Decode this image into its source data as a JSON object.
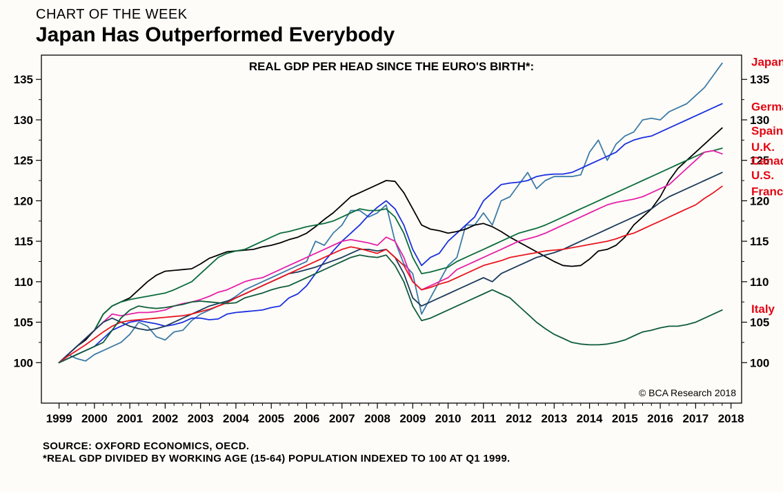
{
  "header": {
    "supertitle": "CHART OF THE WEEK",
    "title": "Japan Has Outperformed Everybody"
  },
  "chart": {
    "type": "line",
    "plot_title": "REAL GDP PER HEAD SINCE THE EURO'S BIRTH*:",
    "plot_title_fontsize": 17,
    "copyright": "© BCA Research 2018",
    "background_color": "#fdfcf8",
    "plot_bg_color": "#fdfcf8",
    "border_color": "#000000",
    "border_width": 1.3,
    "tick_length_major": 8,
    "tick_length_minor": 4,
    "x": {
      "min": 1998.5,
      "max": 2018.3,
      "ticks_major": [
        1999,
        2000,
        2001,
        2002,
        2003,
        2004,
        2005,
        2006,
        2007,
        2008,
        2009,
        2010,
        2011,
        2012,
        2013,
        2014,
        2015,
        2016,
        2017,
        2018
      ],
      "tick_label_fontsize": 17
    },
    "y": {
      "min": 95,
      "max": 138,
      "ticks_major": [
        100,
        105,
        110,
        115,
        120,
        125,
        130,
        135
      ],
      "tick_label_fontsize": 17,
      "right_axis": true
    },
    "label_color": "#e30613",
    "series_x_step": 0.25,
    "series": [
      {
        "name": "Japan",
        "label": "Japan",
        "color": "#3b7aa8",
        "stroke_width": 1.8,
        "label_y": 137,
        "y": [
          100,
          101,
          100.5,
          100.2,
          101,
          101.5,
          102,
          102.5,
          103.5,
          105,
          104.5,
          103.2,
          102.8,
          103.8,
          104,
          105.2,
          106,
          106.5,
          107,
          107.5,
          108.2,
          109,
          109.5,
          110,
          110.5,
          111,
          111.5,
          112,
          112.5,
          115,
          114.5,
          116,
          117,
          118.8,
          118.8,
          118,
          118.5,
          119.5,
          115,
          112.2,
          111,
          106,
          108,
          110,
          112,
          113,
          117,
          117,
          118.5,
          117,
          120,
          120.5,
          122,
          123.5,
          121.5,
          122.5,
          123,
          123,
          123,
          123.2,
          126,
          127.5,
          125,
          127,
          128,
          128.5,
          130,
          130.2,
          130,
          131,
          131.5,
          132,
          133,
          134,
          135.5,
          137
        ]
      },
      {
        "name": "Germany",
        "label": "Germany",
        "color": "#1a2fe0",
        "stroke_width": 1.8,
        "label_y": 131.5,
        "y": [
          100,
          100.5,
          101,
          101.5,
          102,
          103,
          104,
          104.5,
          105,
          105.2,
          105,
          104.8,
          104.5,
          104.7,
          105,
          105.5,
          105.5,
          105.3,
          105.4,
          106,
          106.2,
          106.3,
          106.4,
          106.5,
          106.8,
          107,
          108,
          108.5,
          109.5,
          111,
          112.5,
          113.8,
          115,
          116,
          117,
          118.2,
          119.2,
          120,
          119,
          117,
          114,
          112,
          113,
          113.5,
          115,
          116,
          117,
          118,
          120,
          121,
          122,
          122.2,
          122.3,
          122.5,
          123,
          123.2,
          123.3,
          123.3,
          123.5,
          124,
          124.5,
          125,
          125.5,
          126,
          127,
          127.5,
          127.8,
          128,
          128.5,
          129,
          129.5,
          130,
          130.5,
          131,
          131.5,
          132
        ]
      },
      {
        "name": "Spain",
        "label": "Spain",
        "color": "#000000",
        "stroke_width": 1.8,
        "label_y": 128.5,
        "y": [
          100,
          101,
          102,
          102.8,
          104,
          106,
          107,
          107.5,
          108,
          109,
          110,
          110.8,
          111.3,
          111.4,
          111.5,
          111.6,
          112.2,
          112.9,
          113.3,
          113.7,
          113.8,
          113.9,
          114,
          114.3,
          114.5,
          114.8,
          115.2,
          115.5,
          116,
          116.8,
          117.7,
          118.5,
          119.5,
          120.5,
          121,
          121.5,
          122,
          122.5,
          122.4,
          121,
          119,
          117,
          116.5,
          116.3,
          116,
          116.2,
          116.5,
          117,
          117.2,
          116.8,
          116.2,
          115.5,
          114.9,
          114.3,
          113.7,
          113.1,
          112.5,
          112,
          111.9,
          112,
          112.8,
          113.8,
          114,
          114.5,
          115.5,
          117,
          118,
          119,
          120.5,
          122.5,
          124,
          125,
          126,
          127,
          128,
          129
        ]
      },
      {
        "name": "UK",
        "label": "U.K.",
        "color": "#0a6b3b",
        "stroke_width": 1.8,
        "label_y": 126.5,
        "y": [
          100,
          101,
          102,
          103,
          104,
          106,
          107,
          107.5,
          107.8,
          108,
          108.2,
          108.4,
          108.6,
          109,
          109.5,
          110,
          111,
          112,
          113,
          113.5,
          113.8,
          114,
          114.5,
          115,
          115.5,
          116,
          116.2,
          116.5,
          116.8,
          117,
          117.2,
          117.5,
          118,
          118.5,
          119,
          118.8,
          118.8,
          119,
          118,
          116,
          113,
          111,
          111.2,
          111.5,
          111.8,
          112.5,
          113,
          113.5,
          114,
          114.5,
          115,
          115.5,
          116,
          116.3,
          116.6,
          117,
          117.5,
          118,
          118.5,
          119,
          119.5,
          120,
          120.5,
          121,
          121.5,
          122,
          122.5,
          123,
          123.5,
          124,
          124.5,
          125,
          125.5,
          126,
          126.2,
          126.5
        ]
      },
      {
        "name": "Canada",
        "label": "Canada",
        "color": "#e61fa8",
        "stroke_width": 1.8,
        "label_y": 124.8,
        "y": [
          100,
          101,
          102,
          103,
          104,
          105,
          106,
          105.8,
          106,
          106.2,
          106.2,
          106.3,
          106.5,
          107,
          107.3,
          107.5,
          107.8,
          108.2,
          108.7,
          109,
          109.5,
          110,
          110.3,
          110.5,
          111,
          111.5,
          112,
          112.5,
          113,
          113.5,
          114,
          114.5,
          115,
          115.2,
          115,
          114.8,
          114.5,
          115.5,
          115,
          113,
          110,
          109,
          109.5,
          110,
          110.5,
          111.5,
          112,
          112.5,
          113,
          113.5,
          114,
          114.5,
          115,
          115.3,
          115.6,
          116,
          116.5,
          117,
          117.5,
          118,
          118.5,
          119,
          119.5,
          119.8,
          120,
          120.2,
          120.5,
          121,
          121.5,
          122,
          123,
          124,
          125,
          126,
          126.2,
          125.8
        ]
      },
      {
        "name": "US",
        "label": "U.S.",
        "color": "#1b3a5c",
        "stroke_width": 1.8,
        "label_y": 123,
        "y": [
          100,
          101,
          102,
          103,
          104,
          105,
          105.5,
          105,
          104.5,
          104.2,
          104,
          104.2,
          104.5,
          105,
          105.5,
          106,
          106.5,
          107,
          107.3,
          107.6,
          108,
          108.5,
          109,
          109.5,
          110,
          110.5,
          111,
          111.2,
          111.5,
          111.8,
          112.2,
          112.6,
          113,
          113.5,
          114,
          114,
          113.8,
          114,
          113,
          111,
          108,
          107,
          107.5,
          108,
          108.5,
          109,
          109.5,
          110,
          110.5,
          110,
          111,
          111.5,
          112,
          112.5,
          113,
          113.3,
          113.6,
          114,
          114.5,
          115,
          115.5,
          116,
          116.5,
          117,
          117.5,
          118,
          118.5,
          119,
          119.8,
          120.5,
          121,
          121.5,
          122,
          122.5,
          123,
          123.5
        ]
      },
      {
        "name": "France",
        "label": "France",
        "color": "#e8151f",
        "stroke_width": 1.8,
        "label_y": 121,
        "y": [
          100,
          100.8,
          101.5,
          102.2,
          103,
          103.8,
          104.5,
          105,
          105.2,
          105.3,
          105.4,
          105.5,
          105.6,
          105.7,
          105.8,
          106,
          106.3,
          106.6,
          107,
          107.4,
          108,
          108.5,
          109,
          109.5,
          110,
          110.5,
          111,
          111.5,
          112,
          112.5,
          113,
          113.5,
          114,
          114.3,
          114.1,
          113.8,
          113.5,
          114,
          113,
          112,
          110,
          109,
          109.3,
          109.7,
          110,
          110.5,
          111,
          111.5,
          112,
          112.3,
          112.6,
          113,
          113.2,
          113.4,
          113.6,
          113.8,
          113.9,
          114,
          114.2,
          114.4,
          114.6,
          114.8,
          115,
          115.3,
          115.7,
          116,
          116.5,
          117,
          117.5,
          118,
          118.5,
          119,
          119.5,
          120.3,
          121,
          121.8
        ]
      },
      {
        "name": "Italy",
        "label": "Italy",
        "color": "#0e5b3b",
        "stroke_width": 1.8,
        "label_y": 106.5,
        "y": [
          100,
          100.5,
          101,
          101.5,
          102,
          102.5,
          104,
          105.5,
          106.5,
          107,
          106.8,
          106.7,
          106.8,
          107,
          107.2,
          107.5,
          107.6,
          107.5,
          107.4,
          107.3,
          107.4,
          108,
          108.3,
          108.6,
          109,
          109.3,
          109.5,
          110,
          110.5,
          111,
          111.5,
          112,
          112.5,
          113,
          113.3,
          113.1,
          113,
          113.3,
          112,
          110,
          107,
          105.2,
          105.5,
          106,
          106.5,
          107,
          107.5,
          108,
          108.5,
          109,
          108.5,
          108,
          107,
          106,
          105,
          104.2,
          103.5,
          103,
          102.5,
          102.3,
          102.2,
          102.2,
          102.3,
          102.5,
          102.8,
          103.3,
          103.8,
          104,
          104.3,
          104.5,
          104.5,
          104.7,
          105,
          105.5,
          106,
          106.5
        ]
      }
    ]
  },
  "footnotes": {
    "source": "SOURCE: OXFORD ECONOMICS, OECD.",
    "note": "*REAL GDP DIVIDED BY WORKING AGE (15-64) POPULATION INDEXED TO 100 AT Q1 1999."
  }
}
